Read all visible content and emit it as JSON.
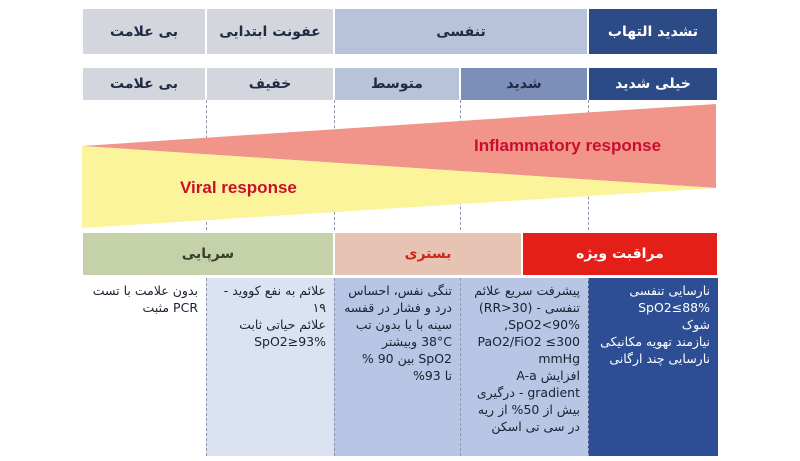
{
  "colors": {
    "grey": "#d3d6dd",
    "light_blue": "#b8c3da",
    "mid_blue": "#7c8fb9",
    "dark_blue": "#2c4a86",
    "inflammatory": "#f1958a",
    "viral": "#fbf49a",
    "green_header": "#c4d1a9",
    "peach_header": "#e6c3b3",
    "red_header": "#e31f18",
    "cell_white": "#ffffff",
    "cell_light": "#dbe3f2",
    "cell_mid": "#b7c6e4",
    "cell_dark": "#2d4e95",
    "label_red": "#c8102e"
  },
  "phase_row": [
    {
      "label": "بی علامت"
    },
    {
      "label": "عفونت ابتدایی"
    },
    {
      "label": "تنفسی"
    },
    {
      "label": "تشدید التهاب"
    }
  ],
  "severity_row": [
    {
      "label": "بی علامت"
    },
    {
      "label": "خفیف"
    },
    {
      "label": "متوسط"
    },
    {
      "label": "شدید"
    },
    {
      "label": "خیلی شدید"
    }
  ],
  "responses": {
    "inflammatory": "Inflammatory response",
    "viral": "Viral response"
  },
  "care_row": [
    {
      "label": "سرپایی"
    },
    {
      "label": "بستری"
    },
    {
      "label": "مراقبت ویژه"
    }
  ],
  "criteria": {
    "asymptomatic": [
      "بدون علامت با تست",
      "PCR مثبت"
    ],
    "mild": [
      "علائم به نفع کووید -",
      "۱۹",
      "علائم حیاتی ثابت",
      "SpO2≥93%"
    ],
    "moderate": [
      "تنگی نفس، احساس",
      "درد و فشار در قفسه",
      "سینه با یا بدون تب",
      "38°C وبیشتر",
      "SpO2 بین 90 %",
      "تا 93%"
    ],
    "severe": [
      "پیشرفت سریع علائم",
      "تنفسی - (RR>30)",
      "SpO2<90%,",
      "PaO2/FiO2 ≤300",
      "mmHg",
      "افزایش A-a",
      "gradient - درگیری",
      "بیش از 50% از ریه",
      "در سی تی اسکن"
    ],
    "very_severe": [
      "نارسایی تنفسی",
      "SpO2≤88%",
      "شوک",
      "نیازمند تهویه مکانیکی",
      "نارسایی چند ارگانی"
    ]
  }
}
